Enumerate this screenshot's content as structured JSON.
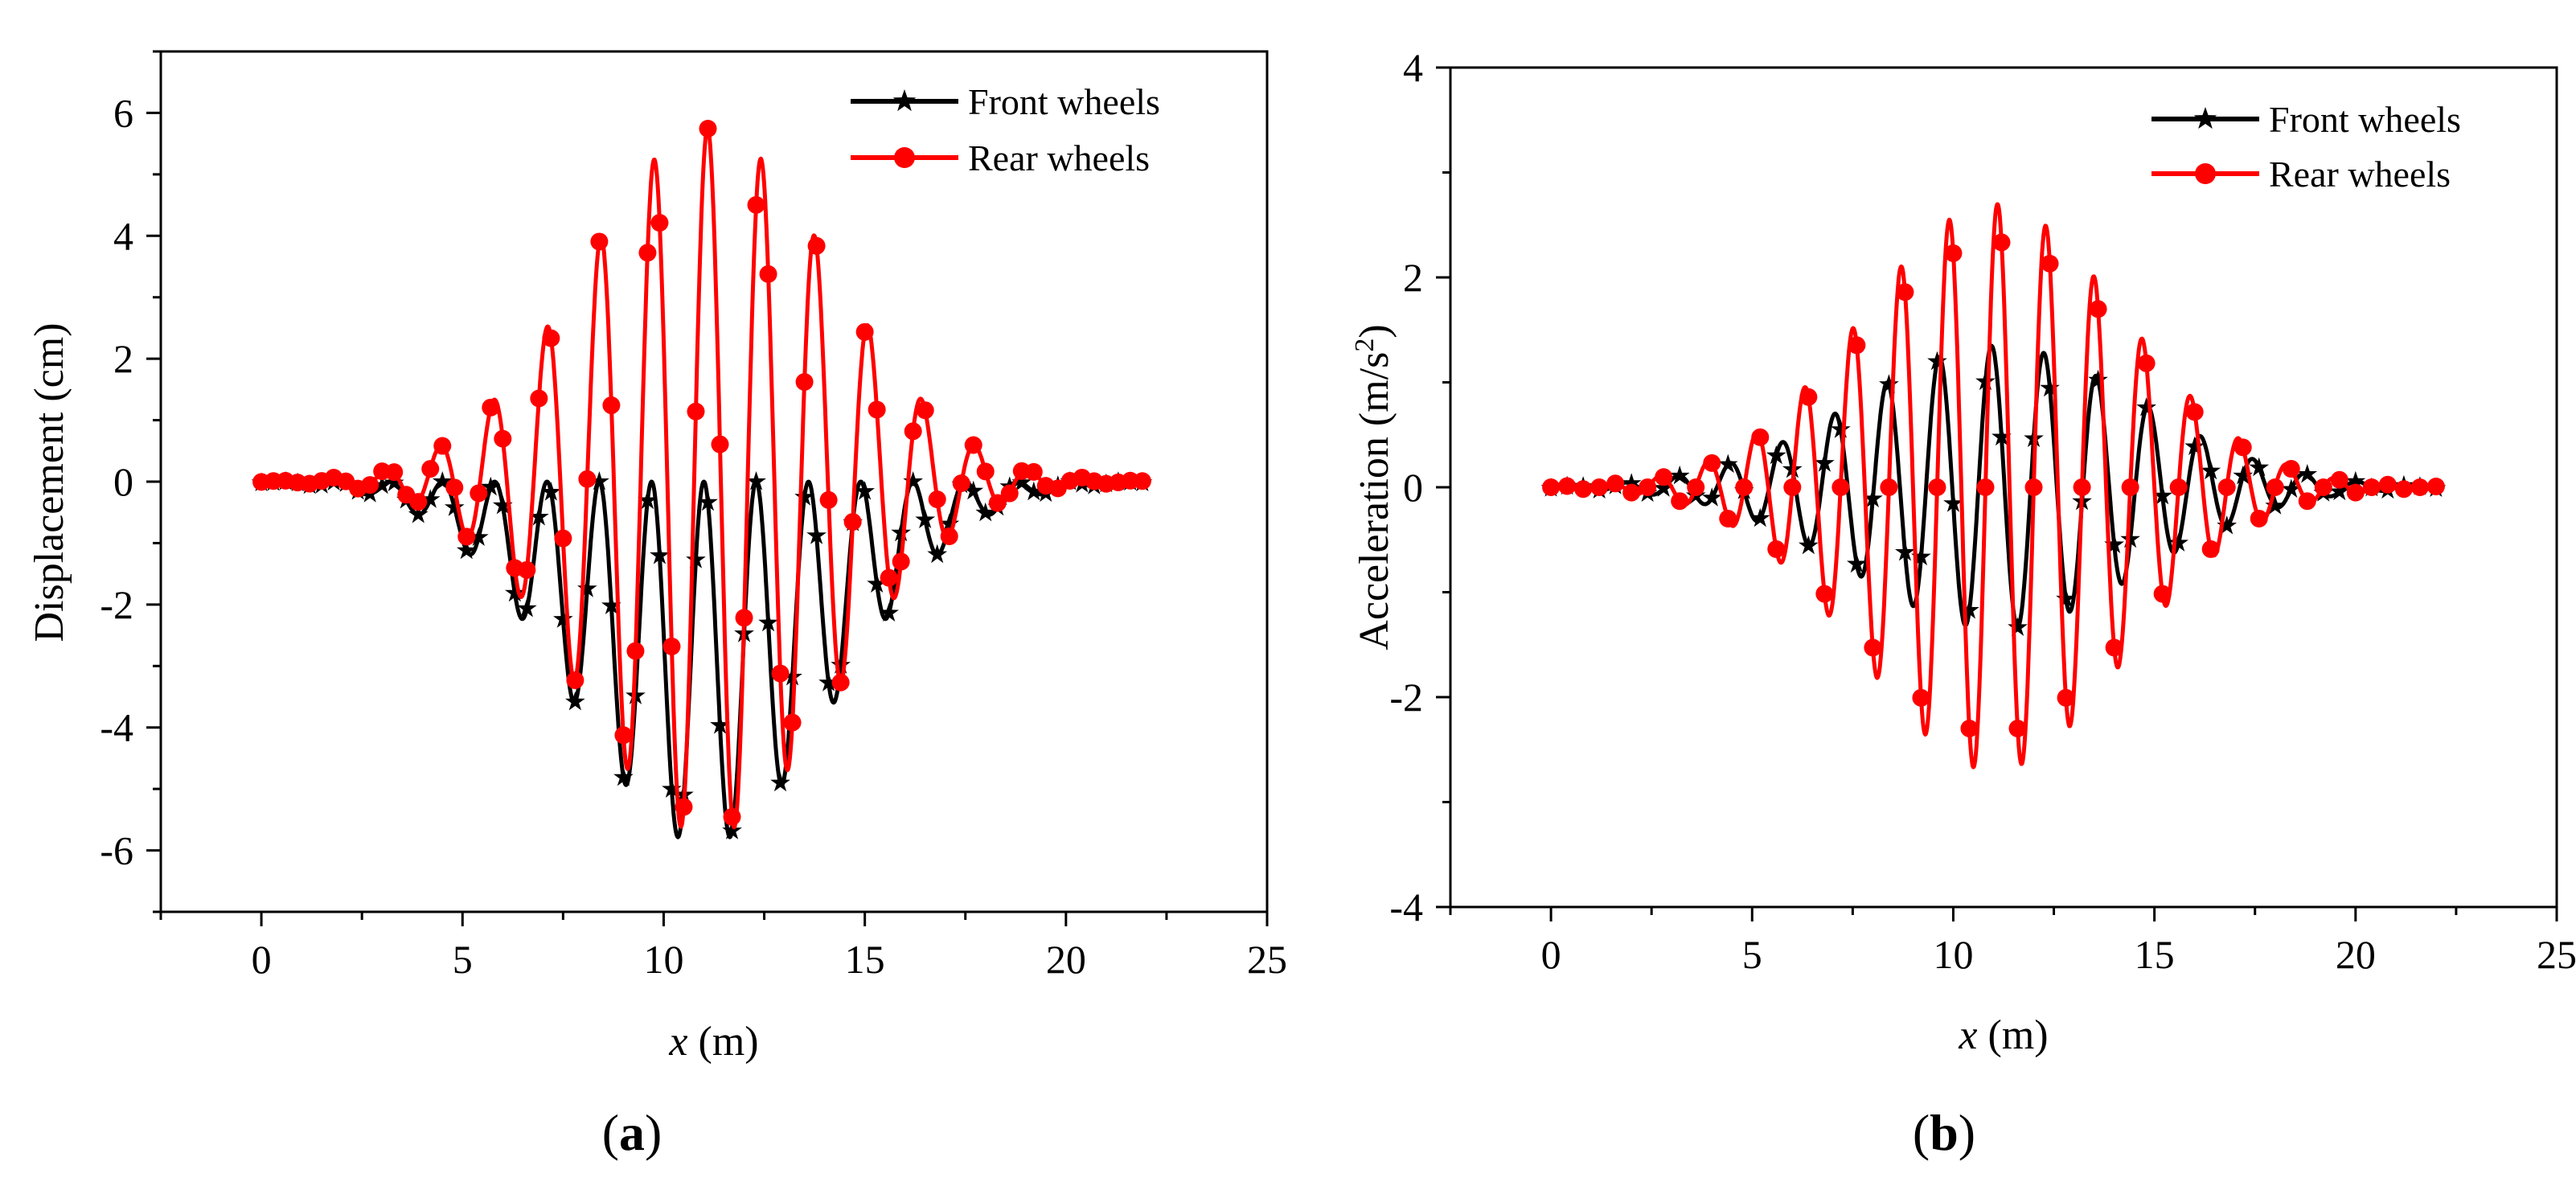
{
  "chart_data": [
    {
      "type": "line",
      "panel_label_open": "(",
      "panel_label_letter": "a",
      "panel_label_close": ")",
      "xlabel_var": "x",
      "xlabel_unit": " (m)",
      "ylabel": "Displacement (cm)",
      "xlim": [
        -2.5,
        25
      ],
      "ylim": [
        -7,
        7
      ],
      "xticks": [
        0,
        5,
        10,
        15,
        20,
        25
      ],
      "yticks": [
        -6,
        -4,
        -2,
        0,
        2,
        4,
        6
      ],
      "grid": false,
      "legend_position": "top-right",
      "series": [
        {
          "name": "Front wheels",
          "color": "#000000",
          "marker": "star",
          "curve": {
            "x_start": 0,
            "x_end": 22,
            "envelope_center": 11,
            "envelope_sigma": 4.6,
            "amplitude": 2.95,
            "offset_amplitude": 2.95,
            "period": 1.3,
            "phase_x": 0.6
          },
          "markers_x": [
            0,
            0.3,
            0.6,
            0.9,
            1.2,
            1.5,
            1.8,
            2.1,
            2.4,
            2.7,
            3.0,
            3.3,
            3.6,
            3.9,
            4.2,
            4.5,
            4.8,
            5.1,
            5.4,
            5.7,
            6.0,
            6.3,
            6.6,
            6.9,
            7.2,
            7.5,
            7.8,
            8.1,
            8.4,
            8.7,
            9.0,
            9.3,
            9.6,
            9.9,
            10.2,
            10.5,
            10.8,
            11.1,
            11.4,
            11.7,
            12.0,
            12.3,
            12.6,
            12.9,
            13.2,
            13.5,
            13.8,
            14.1,
            14.4,
            14.7,
            15.0,
            15.3,
            15.6,
            15.9,
            16.2,
            16.5,
            16.8,
            17.1,
            17.4,
            17.7,
            18.0,
            18.3,
            18.6,
            18.9,
            19.2,
            19.5,
            19.8,
            20.1,
            20.4,
            20.7,
            21.0,
            21.3,
            21.6,
            21.9
          ]
        },
        {
          "name": "Rear wheels",
          "color": "#ff0000",
          "marker": "circle",
          "curve": {
            "x_start": 0,
            "x_end": 22,
            "envelope_center": 11.1,
            "envelope_sigma": 4.4,
            "amplitude": 5.75,
            "offset_amplitude": 0.0,
            "period": 1.33,
            "phase_x": 0.45
          },
          "markers_x": [
            0,
            0.3,
            0.6,
            0.9,
            1.2,
            1.5,
            1.8,
            2.1,
            2.4,
            2.7,
            3.0,
            3.3,
            3.6,
            3.9,
            4.2,
            4.5,
            4.8,
            5.1,
            5.4,
            5.7,
            6.0,
            6.3,
            6.6,
            6.9,
            7.2,
            7.5,
            7.8,
            8.1,
            8.4,
            8.7,
            9.0,
            9.3,
            9.6,
            9.9,
            10.2,
            10.5,
            10.8,
            11.1,
            11.4,
            11.7,
            12.0,
            12.3,
            12.6,
            12.9,
            13.2,
            13.5,
            13.8,
            14.1,
            14.4,
            14.7,
            15.0,
            15.3,
            15.6,
            15.9,
            16.2,
            16.5,
            16.8,
            17.1,
            17.4,
            17.7,
            18.0,
            18.3,
            18.6,
            18.9,
            19.2,
            19.5,
            19.8,
            20.1,
            20.4,
            20.7,
            21.0,
            21.3,
            21.6,
            21.9
          ]
        }
      ]
    },
    {
      "type": "line",
      "panel_label_open": "(",
      "panel_label_letter": "b",
      "panel_label_close": ")",
      "xlabel_var": "x",
      "xlabel_unit": " (m)",
      "ylabel_main": "Acceleration (m/s",
      "ylabel_sup": "2",
      "ylabel_end": ")",
      "xlim": [
        -2.5,
        25
      ],
      "ylim": [
        -4,
        4
      ],
      "xticks": [
        0,
        5,
        10,
        15,
        20,
        25
      ],
      "yticks": [
        -4,
        -2,
        0,
        2,
        4
      ],
      "grid": false,
      "legend_position": "top-right",
      "series": [
        {
          "name": "Front wheels",
          "color": "#000000",
          "marker": "star",
          "curve": {
            "x_start": 0,
            "x_end": 22,
            "envelope_center": 11.1,
            "envelope_sigma": 5.0,
            "amplitude": 1.35,
            "offset_amplitude": 0.0,
            "period": 1.3,
            "phase_x": 0.55
          },
          "markers_x": [
            0,
            0.4,
            0.8,
            1.2,
            1.6,
            2.0,
            2.4,
            2.8,
            3.2,
            3.6,
            4.0,
            4.4,
            4.8,
            5.2,
            5.6,
            6.0,
            6.4,
            6.8,
            7.2,
            7.6,
            8.0,
            8.4,
            8.8,
            9.2,
            9.6,
            10.0,
            10.4,
            10.8,
            11.2,
            11.6,
            12.0,
            12.4,
            12.8,
            13.2,
            13.6,
            14.0,
            14.4,
            14.8,
            15.2,
            15.6,
            16.0,
            16.4,
            16.8,
            17.2,
            17.6,
            18.0,
            18.4,
            18.8,
            19.2,
            19.6,
            20.0,
            20.4,
            20.8,
            21.2,
            21.6,
            22.0
          ]
        },
        {
          "name": "Rear wheels",
          "color": "#ff0000",
          "marker": "circle",
          "curve": {
            "x_start": 0,
            "x_end": 22,
            "envelope_center": 11.0,
            "envelope_sigma": 4.6,
            "amplitude": 2.7,
            "offset_amplitude": 0.0,
            "period": 1.2,
            "phase_x": 0.3
          },
          "markers_x": [
            0,
            0.4,
            0.8,
            1.2,
            1.6,
            2.0,
            2.4,
            2.8,
            3.2,
            3.6,
            4.0,
            4.4,
            4.8,
            5.2,
            5.6,
            6.0,
            6.4,
            6.8,
            7.2,
            7.6,
            8.0,
            8.4,
            8.8,
            9.2,
            9.6,
            10.0,
            10.4,
            10.8,
            11.2,
            11.6,
            12.0,
            12.4,
            12.8,
            13.2,
            13.6,
            14.0,
            14.4,
            14.8,
            15.2,
            15.6,
            16.0,
            16.4,
            16.8,
            17.2,
            17.6,
            18.0,
            18.4,
            18.8,
            19.2,
            19.6,
            20.0,
            20.4,
            20.8,
            21.2,
            21.6,
            22.0
          ]
        }
      ]
    }
  ]
}
